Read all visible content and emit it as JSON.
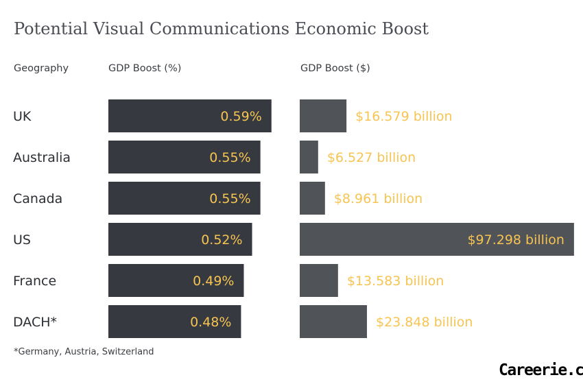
{
  "title": "Potential Visual Communications Economic Boost",
  "headers": {
    "geography": "Geography",
    "gdp_pct": "GDP Boost (%)",
    "gdp_usd": "GDP Boost ($)"
  },
  "colors": {
    "pct_bar": "#36393f",
    "usd_bar": "#505358",
    "label": "#f7c452",
    "text": "#2b2e33"
  },
  "chart_data": {
    "type": "bar",
    "categories": [
      "UK",
      "Australia",
      "Canada",
      "US",
      "France",
      "DACH*"
    ],
    "series": [
      {
        "name": "GDP Boost (%)",
        "values": [
          0.59,
          0.55,
          0.55,
          0.52,
          0.49,
          0.48
        ],
        "labels": [
          "0.59%",
          "0.55%",
          "0.55%",
          "0.52%",
          "0.49%",
          "0.48%"
        ]
      },
      {
        "name": "GDP Boost ($)",
        "values": [
          16.579,
          6.527,
          8.961,
          97.298,
          13.583,
          23.848
        ],
        "labels": [
          "$16.579 billion",
          "$6.527 billion",
          "$8.961 billion",
          "$97.298 billion",
          "$13.583 billion",
          "$23.848 billion"
        ]
      }
    ]
  },
  "footnote": "*Germany, Austria, Switzerland",
  "watermark": "Careerie.com"
}
